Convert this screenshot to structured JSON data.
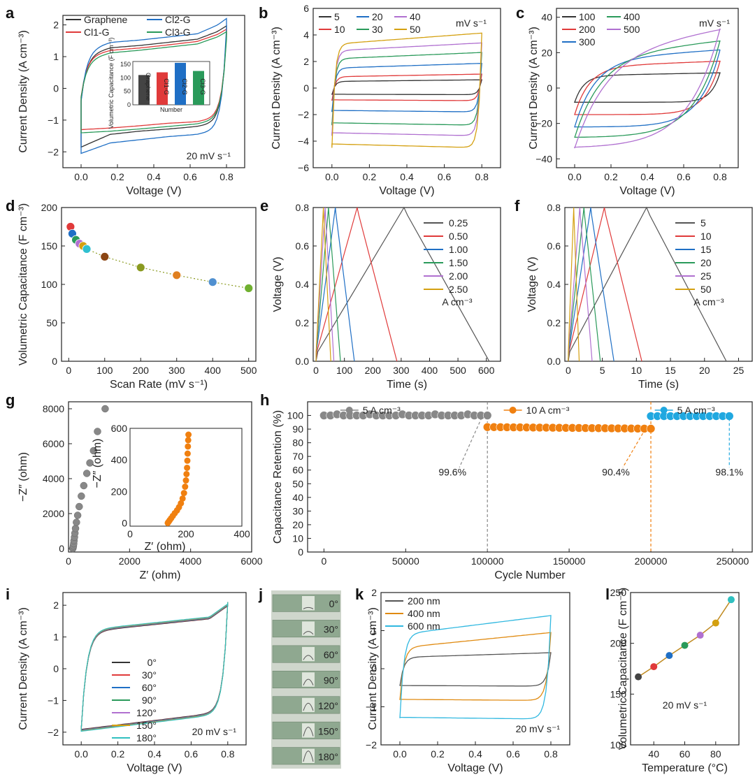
{
  "chart_data": [
    {
      "id": "a",
      "label": "a",
      "type": "line",
      "xlabel": "Voltage (V)",
      "ylabel": "Current Density (A cm⁻³)",
      "xlim": [
        -0.1,
        0.9
      ],
      "ylim": [
        -2.5,
        2.3
      ],
      "xticks": [
        0.0,
        0.2,
        0.4,
        0.6,
        0.8
      ],
      "yticks": [
        -2,
        -1,
        0,
        1,
        2
      ],
      "annotation": "20 mV s⁻¹",
      "series": [
        {
          "name": "Graphene",
          "color": "#333333",
          "top": [
            1.05,
            1.28,
            1.35,
            1.45,
            1.55,
            1.9
          ],
          "bot": [
            -1.85,
            -1.45,
            -1.35,
            -1.28,
            -1.2,
            -1.05
          ]
        },
        {
          "name": "Cl1-G",
          "color": "#e03a3a",
          "top": [
            1.0,
            1.2,
            1.27,
            1.37,
            1.48,
            1.8
          ],
          "bot": [
            -1.3,
            -1.25,
            -1.18,
            -1.1,
            -1.05,
            -0.9
          ]
        },
        {
          "name": "Cl2-G",
          "color": "#1f6fc5",
          "top": [
            1.2,
            1.45,
            1.52,
            1.62,
            1.72,
            2.12
          ],
          "bot": [
            -2.05,
            -1.72,
            -1.62,
            -1.52,
            -1.45,
            -1.3
          ]
        },
        {
          "name": "Cl3-G",
          "color": "#2a9a5a",
          "top": [
            0.9,
            1.12,
            1.2,
            1.3,
            1.4,
            1.72
          ],
          "bot": [
            -1.4,
            -1.35,
            -1.28,
            -1.2,
            -1.12,
            -0.95
          ]
        }
      ],
      "inset": {
        "ylabel": "Volumetric Capacitance (F cm⁻³)",
        "xlabel": "Number",
        "categories": [
          "Graphene",
          "Cl1-G",
          "Cl2-G",
          "Cl3-G"
        ],
        "values": [
          110,
          120,
          155,
          125
        ],
        "ylim": [
          0,
          160
        ],
        "yticks": [
          0,
          50,
          100,
          150
        ],
        "colors": [
          "#444444",
          "#e03a3a",
          "#1f6fc5",
          "#2a9a5a"
        ]
      }
    },
    {
      "id": "b",
      "label": "b",
      "type": "line",
      "xlabel": "Voltage (V)",
      "ylabel": "Current Density (A cm⁻³)",
      "xlim": [
        -0.1,
        0.9
      ],
      "ylim": [
        -6,
        6
      ],
      "xticks": [
        0.0,
        0.2,
        0.4,
        0.6,
        0.8
      ],
      "yticks": [
        -6,
        -4,
        -2,
        0,
        2,
        4,
        6
      ],
      "legend_unit": "mV s⁻¹",
      "series": [
        {
          "name": "5",
          "color": "#333333",
          "top": 0.5,
          "slope": 0.15,
          "bot": -0.5
        },
        {
          "name": "10",
          "color": "#e03a3a",
          "top": 0.85,
          "slope": 0.25,
          "bot": -0.95
        },
        {
          "name": "20",
          "color": "#1f6fc5",
          "top": 1.5,
          "slope": 0.45,
          "bot": -1.8
        },
        {
          "name": "30",
          "color": "#2a9a5a",
          "top": 2.2,
          "slope": 0.6,
          "bot": -2.8
        },
        {
          "name": "40",
          "color": "#b070d0",
          "top": 2.8,
          "slope": 0.75,
          "bot": -3.6
        },
        {
          "name": "50",
          "color": "#d4a010",
          "top": 3.3,
          "slope": 1.05,
          "bot": -4.5
        }
      ]
    },
    {
      "id": "c",
      "label": "c",
      "type": "line",
      "xlabel": "Voltage (V)",
      "ylabel": "Current Density (A cm⁻³)",
      "xlim": [
        -0.1,
        0.9
      ],
      "ylim": [
        -45,
        45
      ],
      "xticks": [
        0.0,
        0.2,
        0.4,
        0.6,
        0.8
      ],
      "yticks": [
        -40,
        -20,
        0,
        20,
        40
      ],
      "legend_unit": "mV s⁻¹",
      "series": [
        {
          "name": "100",
          "color": "#333333",
          "top": 7,
          "slope": 2,
          "bot": -8
        },
        {
          "name": "200",
          "color": "#e03a3a",
          "top": 12,
          "slope": 4,
          "bot": -15
        },
        {
          "name": "300",
          "color": "#1f6fc5",
          "top": 16,
          "slope": 7,
          "bot": -22
        },
        {
          "name": "400",
          "color": "#2a9a5a",
          "top": 18,
          "slope": 11,
          "bot": -28
        },
        {
          "name": "500",
          "color": "#b070d0",
          "top": 20,
          "slope": 17,
          "bot": -34
        }
      ]
    },
    {
      "id": "d",
      "label": "d",
      "type": "scatter",
      "xlabel": "Scan Rate (mV s⁻¹)",
      "ylabel": "Volumetric Capacitance (F cm⁻³)",
      "xlim": [
        -20,
        520
      ],
      "ylim": [
        0,
        200
      ],
      "xticks": [
        0,
        100,
        200,
        300,
        400,
        500
      ],
      "yticks": [
        0,
        50,
        100,
        150,
        200
      ],
      "x": [
        5,
        10,
        20,
        30,
        40,
        50,
        100,
        200,
        300,
        400,
        500
      ],
      "y": [
        175,
        166,
        158,
        153,
        150,
        146,
        136,
        122,
        112,
        103,
        95
      ],
      "colors": [
        "#e03a3a",
        "#1f6fc5",
        "#2a9a5a",
        "#b070d0",
        "#d4a010",
        "#30c0d0",
        "#8b4513",
        "#8a9a20",
        "#e08020",
        "#5090d0",
        "#70b030"
      ]
    },
    {
      "id": "e",
      "label": "e",
      "type": "line",
      "xlabel": "Time (s)",
      "ylabel": "Voltage (V)",
      "xlim": [
        -10,
        650
      ],
      "ylim": [
        0,
        0.8
      ],
      "xticks": [
        0,
        100,
        200,
        300,
        400,
        500,
        600
      ],
      "yticks": [
        0.0,
        0.2,
        0.4,
        0.6,
        0.8
      ],
      "legend_unit": "A cm⁻³",
      "series": [
        {
          "name": "0.25",
          "color": "#555555",
          "peak": 310,
          "end": 610
        },
        {
          "name": "0.50",
          "color": "#e03a3a",
          "peak": 145,
          "end": 285
        },
        {
          "name": "1.00",
          "color": "#1f6fc5",
          "peak": 68,
          "end": 135
        },
        {
          "name": "1.50",
          "color": "#2a9a5a",
          "peak": 44,
          "end": 86
        },
        {
          "name": "2.00",
          "color": "#b070d0",
          "peak": 32,
          "end": 63
        },
        {
          "name": "2.50",
          "color": "#d4a010",
          "peak": 26,
          "end": 52
        }
      ]
    },
    {
      "id": "f",
      "label": "f",
      "type": "line",
      "xlabel": "Time (s)",
      "ylabel": "Voltage (V)",
      "xlim": [
        -0.5,
        27
      ],
      "ylim": [
        0,
        0.8
      ],
      "xticks": [
        0,
        5,
        10,
        15,
        20,
        25
      ],
      "yticks": [
        0.0,
        0.2,
        0.4,
        0.6,
        0.8
      ],
      "legend_unit": "A cm⁻³",
      "series": [
        {
          "name": "5",
          "color": "#555555",
          "peak": 11.5,
          "end": 23.2
        },
        {
          "name": "10",
          "color": "#e03a3a",
          "peak": 5.3,
          "end": 10.8
        },
        {
          "name": "15",
          "color": "#1f6fc5",
          "peak": 3.3,
          "end": 6.7
        },
        {
          "name": "20",
          "color": "#2a9a5a",
          "peak": 2.3,
          "end": 4.7
        },
        {
          "name": "25",
          "color": "#b070d0",
          "peak": 1.7,
          "end": 3.5
        },
        {
          "name": "50",
          "color": "#d4a010",
          "peak": 0.8,
          "end": 1.6
        }
      ]
    },
    {
      "id": "g",
      "label": "g",
      "type": "scatter",
      "xlabel": "Z′ (ohm)",
      "ylabel": "−Z″ (ohm)",
      "xlim": [
        0,
        6000
      ],
      "ylim": [
        -200,
        8400
      ],
      "xticks": [
        0,
        2000,
        4000,
        6000
      ],
      "yticks": [
        0,
        2000,
        4000,
        6000,
        8000
      ],
      "x": [
        140,
        150,
        160,
        170,
        180,
        195,
        210,
        230,
        260,
        300,
        350,
        420,
        500,
        600,
        700,
        820,
        950,
        1200
      ],
      "y": [
        0,
        60,
        150,
        280,
        450,
        650,
        880,
        1150,
        1500,
        1900,
        2400,
        3000,
        3600,
        4300,
        4900,
        5600,
        6700,
        8000
      ],
      "color": "#888888",
      "inset": {
        "xlabel": "Z′ (ohm)",
        "ylabel": "−Z″ (ohm)",
        "xlim": [
          0,
          400
        ],
        "ylim": [
          -20,
          600
        ],
        "xticks": [
          0,
          200,
          400
        ],
        "yticks": [
          0,
          200,
          400,
          600
        ],
        "x": [
          135,
          138,
          142,
          147,
          153,
          160,
          168,
          175,
          182,
          188,
          193,
          197,
          200,
          202,
          204,
          205,
          206,
          207,
          208,
          209
        ],
        "y": [
          0,
          8,
          18,
          30,
          45,
          62,
          80,
          100,
          125,
          155,
          190,
          230,
          270,
          310,
          350,
          395,
          440,
          485,
          525,
          560
        ],
        "color": "#f08010"
      }
    },
    {
      "id": "h",
      "label": "h",
      "type": "scatter",
      "xlabel": "Cycle Number",
      "ylabel": "Capacitance Retention (%)",
      "xlim": [
        -10000,
        262000
      ],
      "ylim": [
        0,
        110
      ],
      "xticks": [
        0,
        50000,
        100000,
        150000,
        200000,
        250000
      ],
      "yticks": [
        0,
        10,
        20,
        30,
        40,
        50,
        60,
        70,
        80,
        90,
        100
      ],
      "segments": [
        {
          "label": "5 A cm⁻³",
          "color": "#888888",
          "start": 0,
          "end": 100000,
          "level": 100,
          "final": "99.6%"
        },
        {
          "label": "10 A cm⁻³",
          "color": "#f08010",
          "start": 100000,
          "end": 200000,
          "level": 91.5,
          "final": "90.4%"
        },
        {
          "label": "5 A cm⁻³",
          "color": "#20a8e0",
          "start": 200000,
          "end": 248000,
          "level": 99.5,
          "final": "98.1%"
        }
      ]
    },
    {
      "id": "i",
      "label": "i",
      "type": "line",
      "xlabel": "Voltage (V)",
      "ylabel": "Current Density (A cm⁻³)",
      "xlim": [
        -0.1,
        0.9
      ],
      "ylim": [
        -2.4,
        2.4
      ],
      "xticks": [
        0.0,
        0.2,
        0.4,
        0.6,
        0.8
      ],
      "yticks": [
        -2,
        -1,
        0,
        1,
        2
      ],
      "annotation": "20 mV s⁻¹",
      "series": [
        {
          "name": "0°",
          "color": "#333333"
        },
        {
          "name": "30°",
          "color": "#e03a3a"
        },
        {
          "name": "60°",
          "color": "#1f6fc5"
        },
        {
          "name": "90°",
          "color": "#2a9a5a"
        },
        {
          "name": "120°",
          "color": "#b070d0"
        },
        {
          "name": "150°",
          "color": "#d4a010"
        },
        {
          "name": "180°",
          "color": "#30c0c0"
        }
      ]
    },
    {
      "id": "j",
      "label": "j",
      "type": "photo",
      "angles": [
        "0°",
        "30°",
        "60°",
        "90°",
        "120°",
        "150°",
        "180°"
      ],
      "colors": [
        "#222222",
        "#e03a3a",
        "#1f6fc5",
        "#2a9a5a",
        "#7050b0",
        "#d4a010",
        "#30c0c0"
      ]
    },
    {
      "id": "k",
      "label": "k",
      "type": "line",
      "xlabel": "Voltage (V)",
      "ylabel": "Current Density (A cm⁻³)",
      "xlim": [
        -0.1,
        0.9
      ],
      "ylim": [
        -2,
        2
      ],
      "xticks": [
        0.0,
        0.2,
        0.4,
        0.6,
        0.8
      ],
      "yticks": [
        -2,
        -1,
        0,
        1,
        2
      ],
      "annotation": "20 mV s⁻¹",
      "series": [
        {
          "name": "200 nm",
          "color": "#555555",
          "top": 0.3,
          "slope": 0.15,
          "bot": -0.45
        },
        {
          "name": "400 nm",
          "color": "#e08a10",
          "top": 0.55,
          "slope": 0.5,
          "bot": -0.82
        },
        {
          "name": "600 nm",
          "color": "#30b8e0",
          "top": 0.9,
          "slope": 0.62,
          "bot": -1.3
        }
      ]
    },
    {
      "id": "l",
      "label": "l",
      "type": "line",
      "xlabel": "Temperature (°C)",
      "ylabel": "Volumetric Capacitance (F cm⁻³)",
      "xlim": [
        25,
        95
      ],
      "ylim": [
        100,
        250
      ],
      "xticks": [
        40,
        60,
        80
      ],
      "yticks": [
        100,
        150,
        200,
        250
      ],
      "annotation": "20 mV s⁻¹",
      "x": [
        30,
        40,
        50,
        60,
        70,
        80,
        90
      ],
      "y": [
        167,
        177,
        188,
        198,
        208,
        220,
        243
      ],
      "colors": [
        "#444444",
        "#e03a3a",
        "#1f6fc5",
        "#2a9a5a",
        "#b070d0",
        "#d4a010",
        "#30c0c0"
      ]
    }
  ]
}
